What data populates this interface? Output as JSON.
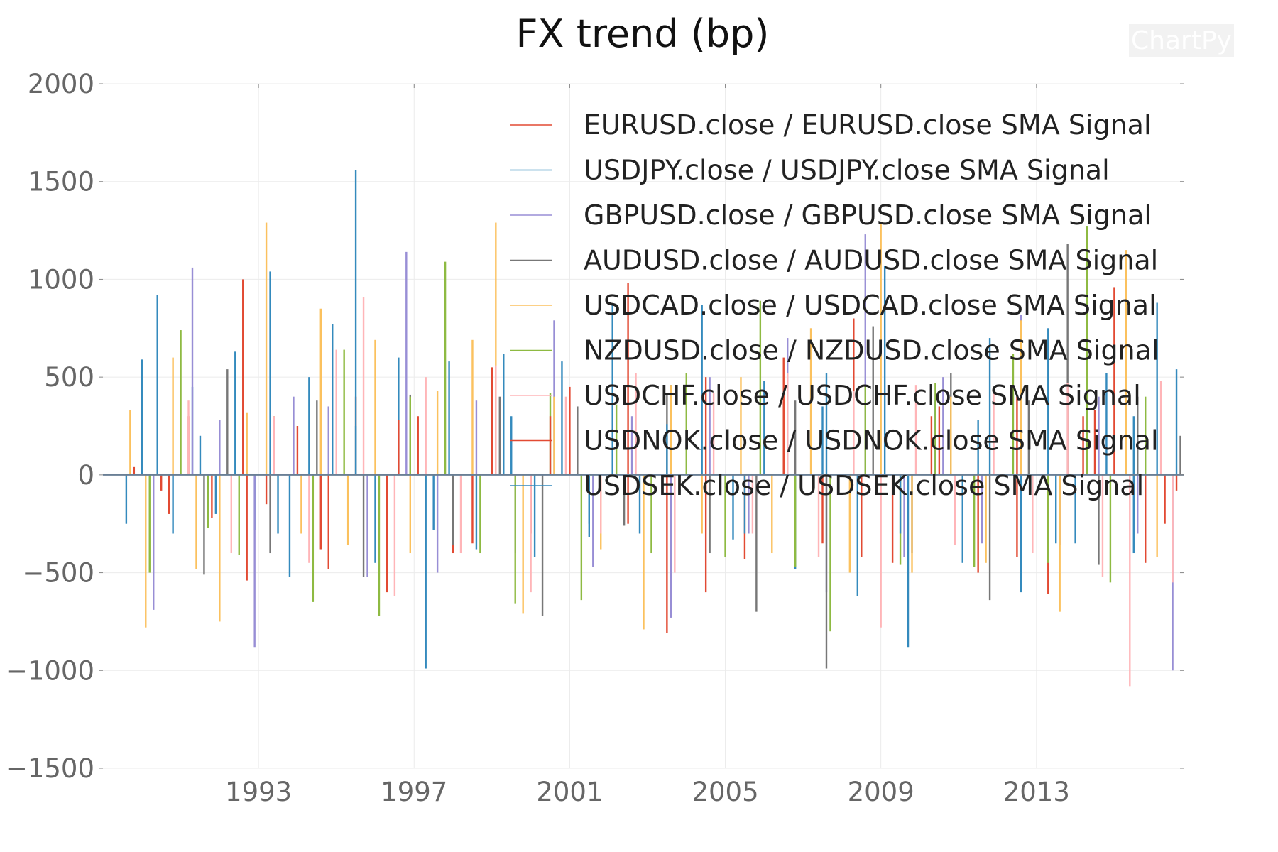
{
  "chart_data": {
    "type": "bar",
    "title": "FX trend (bp)",
    "watermark": "ChartPy",
    "xlabel": "",
    "ylabel": "",
    "x_range": [
      1989.0,
      2016.8
    ],
    "ylim": [
      -1500,
      2000
    ],
    "y_ticks": [
      2000,
      1500,
      1000,
      500,
      0,
      -500,
      -1000,
      -1500
    ],
    "y_tick_labels": [
      "2000",
      "1500",
      "1000",
      "500",
      "0",
      "−500",
      "−1000",
      "−1500"
    ],
    "x_ticks": [
      1993,
      1997,
      2001,
      2005,
      2009,
      2013
    ],
    "x_tick_labels": [
      "1993",
      "1997",
      "2001",
      "2005",
      "2009",
      "2013"
    ],
    "grid": true,
    "legend_position": "top-right",
    "series": [
      {
        "name": "EURUSD.close / EURUSD.close SMA Signal",
        "color": "#e24a33",
        "values": [
          [
            1989.8,
            40
          ],
          [
            1990.5,
            -80
          ],
          [
            1991.2,
            300
          ],
          [
            1991.8,
            -220
          ],
          [
            1992.6,
            1000
          ],
          [
            1993.2,
            -150
          ],
          [
            1994.0,
            250
          ],
          [
            1994.8,
            -480
          ],
          [
            1995.5,
            400
          ],
          [
            1996.3,
            -600
          ],
          [
            1997.1,
            300
          ],
          [
            1998.0,
            -400
          ],
          [
            1999.0,
            550
          ],
          [
            2000.0,
            -300
          ],
          [
            2001.0,
            450
          ],
          [
            2002.5,
            980
          ],
          [
            2003.5,
            -810
          ],
          [
            2004.5,
            500
          ],
          [
            2005.5,
            -430
          ],
          [
            2006.5,
            600
          ],
          [
            2007.5,
            -350
          ],
          [
            2008.3,
            800
          ],
          [
            2009.3,
            -450
          ],
          [
            2010.3,
            300
          ],
          [
            2011.5,
            -500
          ],
          [
            2012.5,
            400
          ],
          [
            2013.3,
            -610
          ],
          [
            2014.2,
            300
          ],
          [
            2015.0,
            960
          ],
          [
            2015.8,
            -450
          ],
          [
            2016.6,
            -80
          ]
        ]
      },
      {
        "name": "USDJPY.close / USDJPY.close SMA Signal",
        "color": "#348abd",
        "values": [
          [
            1989.6,
            -250
          ],
          [
            1990.0,
            590
          ],
          [
            1990.4,
            920
          ],
          [
            1990.8,
            -300
          ],
          [
            1991.3,
            450
          ],
          [
            1991.9,
            -200
          ],
          [
            1992.4,
            630
          ],
          [
            1992.9,
            -280
          ],
          [
            1993.3,
            1040
          ],
          [
            1993.8,
            -520
          ],
          [
            1994.3,
            500
          ],
          [
            1994.9,
            770
          ],
          [
            1995.5,
            1560
          ],
          [
            1996.0,
            -450
          ],
          [
            1996.6,
            600
          ],
          [
            1997.3,
            -990
          ],
          [
            1997.9,
            580
          ],
          [
            1998.6,
            -380
          ],
          [
            1999.3,
            620
          ],
          [
            2000.1,
            -420
          ],
          [
            2000.8,
            580
          ],
          [
            2001.5,
            -250
          ],
          [
            2002.1,
            870
          ],
          [
            2002.8,
            -300
          ],
          [
            2003.6,
            460
          ],
          [
            2004.4,
            870
          ],
          [
            2005.2,
            -330
          ],
          [
            2006.0,
            480
          ],
          [
            2006.8,
            -480
          ],
          [
            2007.6,
            520
          ],
          [
            2008.4,
            -620
          ],
          [
            2009.1,
            1070
          ],
          [
            2009.7,
            -880
          ],
          [
            2010.4,
            380
          ],
          [
            2011.1,
            -450
          ],
          [
            2011.8,
            700
          ],
          [
            2012.6,
            -600
          ],
          [
            2013.3,
            750
          ],
          [
            2014.0,
            -350
          ],
          [
            2014.8,
            520
          ],
          [
            2015.5,
            -400
          ],
          [
            2016.1,
            880
          ],
          [
            2016.6,
            540
          ]
        ]
      },
      {
        "name": "GBPUSD.close / GBPUSD.close SMA Signal",
        "color": "#988ed5",
        "values": [
          [
            1990.3,
            -690
          ],
          [
            1991.3,
            1060
          ],
          [
            1992.0,
            280
          ],
          [
            1992.9,
            -880
          ],
          [
            1993.9,
            400
          ],
          [
            1994.8,
            350
          ],
          [
            1995.8,
            -520
          ],
          [
            1996.8,
            1140
          ],
          [
            1997.6,
            -500
          ],
          [
            1998.6,
            380
          ],
          [
            1999.6,
            -400
          ],
          [
            2000.6,
            790
          ],
          [
            2001.6,
            -470
          ],
          [
            2002.6,
            300
          ],
          [
            2003.6,
            -730
          ],
          [
            2004.6,
            500
          ],
          [
            2005.6,
            -300
          ],
          [
            2006.6,
            700
          ],
          [
            2007.6,
            -600
          ],
          [
            2008.6,
            1230
          ],
          [
            2009.6,
            -420
          ],
          [
            2010.6,
            500
          ],
          [
            2011.6,
            -350
          ],
          [
            2012.6,
            820
          ],
          [
            2013.6,
            -360
          ],
          [
            2014.6,
            400
          ],
          [
            2015.6,
            -300
          ],
          [
            2016.5,
            -1000
          ]
        ]
      },
      {
        "name": "AUDUSD.close / AUDUSD.close SMA Signal",
        "color": "#777777",
        "values": [
          [
            1991.6,
            -510
          ],
          [
            1992.2,
            540
          ],
          [
            1993.3,
            -400
          ],
          [
            1994.5,
            380
          ],
          [
            1995.7,
            -520
          ],
          [
            1996.9,
            410
          ],
          [
            1998.0,
            -360
          ],
          [
            1999.2,
            400
          ],
          [
            2000.3,
            -720
          ],
          [
            2001.2,
            350
          ],
          [
            2002.4,
            -260
          ],
          [
            2003.5,
            420
          ],
          [
            2004.6,
            -400
          ],
          [
            2005.8,
            -700
          ],
          [
            2006.8,
            380
          ],
          [
            2007.6,
            -990
          ],
          [
            2008.8,
            760
          ],
          [
            2009.8,
            -400
          ],
          [
            2010.8,
            520
          ],
          [
            2011.8,
            -640
          ],
          [
            2012.8,
            380
          ],
          [
            2013.8,
            1180
          ],
          [
            2014.6,
            -460
          ],
          [
            2015.6,
            400
          ],
          [
            2016.7,
            200
          ]
        ]
      },
      {
        "name": "USDCAD.close / USDCAD.close SMA Signal",
        "color": "#fbc15e",
        "values": [
          [
            1989.7,
            330
          ],
          [
            1990.1,
            -780
          ],
          [
            1990.8,
            600
          ],
          [
            1991.4,
            -480
          ],
          [
            1992.0,
            -750
          ],
          [
            1992.7,
            320
          ],
          [
            1993.2,
            1290
          ],
          [
            1994.1,
            -300
          ],
          [
            1994.6,
            850
          ],
          [
            1995.3,
            -360
          ],
          [
            1996.0,
            690
          ],
          [
            1996.9,
            -400
          ],
          [
            1997.6,
            430
          ],
          [
            1998.5,
            690
          ],
          [
            1999.1,
            1290
          ],
          [
            1999.8,
            -710
          ],
          [
            2000.6,
            400
          ],
          [
            2001.8,
            -380
          ],
          [
            2002.9,
            -790
          ],
          [
            2003.6,
            460
          ],
          [
            2004.4,
            -300
          ],
          [
            2005.4,
            500
          ],
          [
            2006.2,
            -400
          ],
          [
            2007.2,
            750
          ],
          [
            2008.2,
            -500
          ],
          [
            2009.0,
            1290
          ],
          [
            2009.8,
            -500
          ],
          [
            2010.8,
            400
          ],
          [
            2011.7,
            -450
          ],
          [
            2012.6,
            790
          ],
          [
            2013.6,
            -700
          ],
          [
            2014.3,
            500
          ],
          [
            2015.3,
            1150
          ],
          [
            2016.1,
            -420
          ]
        ]
      },
      {
        "name": "NZDUSD.close / NZDUSD.close SMA Signal",
        "color": "#8eba42",
        "values": [
          [
            1990.2,
            -500
          ],
          [
            1991.0,
            740
          ],
          [
            1991.7,
            -270
          ],
          [
            1992.5,
            -410
          ],
          [
            1993.4,
            300
          ],
          [
            1994.4,
            -650
          ],
          [
            1995.2,
            640
          ],
          [
            1996.1,
            -720
          ],
          [
            1996.9,
            400
          ],
          [
            1997.8,
            1090
          ],
          [
            1998.7,
            -400
          ],
          [
            1999.6,
            -660
          ],
          [
            2000.5,
            420
          ],
          [
            2001.3,
            -640
          ],
          [
            2002.2,
            360
          ],
          [
            2003.1,
            -400
          ],
          [
            2004.0,
            520
          ],
          [
            2005.0,
            -420
          ],
          [
            2005.9,
            890
          ],
          [
            2006.8,
            -470
          ],
          [
            2007.7,
            -800
          ],
          [
            2008.6,
            460
          ],
          [
            2009.5,
            -460
          ],
          [
            2010.4,
            470
          ],
          [
            2011.4,
            -470
          ],
          [
            2012.4,
            620
          ],
          [
            2013.3,
            -450
          ],
          [
            2014.3,
            1270
          ],
          [
            2014.9,
            -550
          ],
          [
            2015.8,
            400
          ]
        ]
      },
      {
        "name": "USDCHF.close / USDCHF.close SMA Signal",
        "color": "#ffb5b8",
        "values": [
          [
            1991.2,
            380
          ],
          [
            1992.3,
            -400
          ],
          [
            1993.4,
            300
          ],
          [
            1994.3,
            -450
          ],
          [
            1995.0,
            640
          ],
          [
            1995.7,
            910
          ],
          [
            1996.5,
            -620
          ],
          [
            1997.3,
            500
          ],
          [
            1998.2,
            -400
          ],
          [
            1999.1,
            560
          ],
          [
            2000.0,
            -600
          ],
          [
            2000.9,
            400
          ],
          [
            2001.8,
            -300
          ],
          [
            2002.7,
            520
          ],
          [
            2003.7,
            -500
          ],
          [
            2004.7,
            420
          ],
          [
            2005.7,
            -300
          ],
          [
            2006.6,
            520
          ],
          [
            2007.4,
            -420
          ],
          [
            2008.3,
            430
          ],
          [
            2009.0,
            -780
          ],
          [
            2009.9,
            460
          ],
          [
            2010.9,
            -360
          ],
          [
            2011.9,
            440
          ],
          [
            2012.9,
            -400
          ],
          [
            2013.8,
            470
          ],
          [
            2014.7,
            -520
          ],
          [
            2015.4,
            -1080
          ],
          [
            2016.2,
            480
          ],
          [
            2016.5,
            -550
          ]
        ]
      },
      {
        "name": "USDNOK.close / USDNOK.close SMA Signal",
        "color": "#e24a33",
        "values": [
          [
            1990.7,
            -200
          ],
          [
            1992.7,
            -540
          ],
          [
            1994.6,
            -380
          ],
          [
            1996.6,
            280
          ],
          [
            1998.5,
            -350
          ],
          [
            2000.5,
            300
          ],
          [
            2002.5,
            -250
          ],
          [
            2004.5,
            -600
          ],
          [
            2006.5,
            380
          ],
          [
            2008.5,
            -420
          ],
          [
            2010.5,
            350
          ],
          [
            2012.5,
            -420
          ],
          [
            2014.5,
            330
          ],
          [
            2016.3,
            -250
          ]
        ]
      },
      {
        "name": "USDSEK.close / USDSEK.close SMA Signal",
        "color": "#348abd",
        "values": [
          [
            1991.5,
            200
          ],
          [
            1993.5,
            -300
          ],
          [
            1995.5,
            250
          ],
          [
            1997.5,
            -280
          ],
          [
            1999.5,
            300
          ],
          [
            2001.5,
            -320
          ],
          [
            2003.5,
            260
          ],
          [
            2005.5,
            -300
          ],
          [
            2007.5,
            350
          ],
          [
            2009.5,
            -300
          ],
          [
            2011.5,
            280
          ],
          [
            2013.5,
            -350
          ],
          [
            2015.5,
            300
          ]
        ]
      }
    ]
  }
}
